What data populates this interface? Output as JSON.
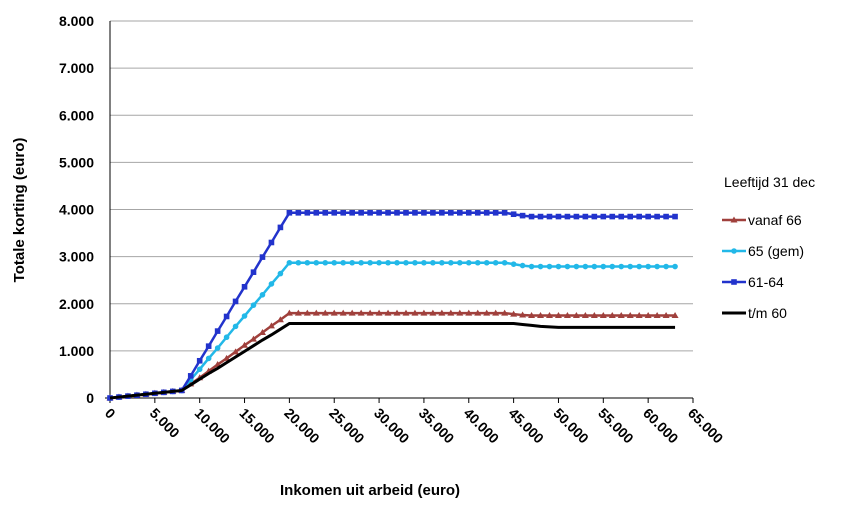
{
  "chart_data": {
    "type": "line",
    "xlabel": "Inkomen uit arbeid (euro)",
    "ylabel": "Totale korting (euro)",
    "legend_title": "Leeftijd 31 dec",
    "legend": "right",
    "grid": true,
    "xlim": [
      0,
      65000
    ],
    "ylim": [
      0,
      8000
    ],
    "xticks": [
      0,
      {
        "value": 5000,
        "label": "5.000"
      },
      {
        "value": 10000,
        "label": "10.000"
      },
      {
        "value": 15000,
        "label": "15.000"
      },
      {
        "value": 20000,
        "label": "20.000"
      },
      {
        "value": 25000,
        "label": "25.000"
      },
      {
        "value": 30000,
        "label": "30.000"
      },
      {
        "value": 35000,
        "label": "35.000"
      },
      {
        "value": 40000,
        "label": "40.000"
      },
      {
        "value": 45000,
        "label": "45.000"
      },
      {
        "value": 50000,
        "label": "50.000"
      },
      {
        "value": 55000,
        "label": "55.000"
      },
      {
        "value": 60000,
        "label": "60.000"
      },
      {
        "value": 65000,
        "label": "65.000"
      }
    ],
    "yticks": [
      0,
      {
        "value": 1000,
        "label": "1.000"
      },
      {
        "value": 2000,
        "label": "2.000"
      },
      {
        "value": 3000,
        "label": "3.000"
      },
      {
        "value": 4000,
        "label": "4.000"
      },
      {
        "value": 5000,
        "label": "5.000"
      },
      {
        "value": 6000,
        "label": "6.000"
      },
      {
        "value": 7000,
        "label": "7.000"
      },
      {
        "value": 8000,
        "label": "8.000"
      }
    ],
    "x": [
      0,
      1000,
      2000,
      3000,
      4000,
      5000,
      6000,
      7000,
      8000,
      9000,
      10000,
      11000,
      12000,
      13000,
      14000,
      15000,
      16000,
      17000,
      18000,
      19000,
      20000,
      21000,
      22000,
      23000,
      24000,
      25000,
      26000,
      27000,
      28000,
      29000,
      30000,
      31000,
      32000,
      33000,
      34000,
      35000,
      36000,
      37000,
      38000,
      39000,
      40000,
      41000,
      42000,
      43000,
      44000,
      45000,
      46000,
      47000,
      48000,
      49000,
      50000,
      51000,
      52000,
      53000,
      54000,
      55000,
      56000,
      57000,
      58000,
      59000,
      60000,
      61000,
      62000,
      63000
    ],
    "series": [
      {
        "name": "vanaf 66",
        "color": "#a0403c",
        "marker": "triangle",
        "values": [
          0,
          20,
          40,
          60,
          80,
          100,
          120,
          140,
          160,
          300,
          430,
          570,
          710,
          840,
          980,
          1120,
          1250,
          1390,
          1530,
          1660,
          1800,
          1800,
          1800,
          1800,
          1800,
          1800,
          1800,
          1800,
          1800,
          1800,
          1800,
          1800,
          1800,
          1800,
          1800,
          1800,
          1800,
          1800,
          1800,
          1800,
          1800,
          1800,
          1800,
          1800,
          1800,
          1780,
          1760,
          1750,
          1750,
          1750,
          1750,
          1750,
          1750,
          1750,
          1750,
          1750,
          1750,
          1750,
          1750,
          1750,
          1750,
          1750,
          1750,
          1750
        ]
      },
      {
        "name": "65 (gem)",
        "color": "#22b8e8",
        "marker": "circle",
        "values": [
          0,
          20,
          40,
          60,
          80,
          100,
          120,
          140,
          160,
          390,
          610,
          840,
          1060,
          1290,
          1520,
          1740,
          1970,
          2190,
          2420,
          2640,
          2870,
          2870,
          2870,
          2870,
          2870,
          2870,
          2870,
          2870,
          2870,
          2870,
          2870,
          2870,
          2870,
          2870,
          2870,
          2870,
          2870,
          2870,
          2870,
          2870,
          2870,
          2870,
          2870,
          2870,
          2870,
          2840,
          2810,
          2790,
          2790,
          2790,
          2790,
          2790,
          2790,
          2790,
          2790,
          2790,
          2790,
          2790,
          2790,
          2790,
          2790,
          2790,
          2790,
          2790
        ]
      },
      {
        "name": "61-64",
        "color": "#2233cc",
        "marker": "square",
        "values": [
          0,
          20,
          40,
          60,
          80,
          100,
          120,
          140,
          160,
          470,
          790,
          1100,
          1420,
          1730,
          2050,
          2360,
          2670,
          2990,
          3300,
          3620,
          3930,
          3930,
          3930,
          3930,
          3930,
          3930,
          3930,
          3930,
          3930,
          3930,
          3930,
          3930,
          3930,
          3930,
          3930,
          3930,
          3930,
          3930,
          3930,
          3930,
          3930,
          3930,
          3930,
          3930,
          3930,
          3900,
          3870,
          3850,
          3850,
          3850,
          3850,
          3850,
          3850,
          3850,
          3850,
          3850,
          3850,
          3850,
          3850,
          3850,
          3850,
          3850,
          3850,
          3850
        ]
      },
      {
        "name": "t/m 60",
        "color": "#000000",
        "marker": "none",
        "values": [
          0,
          20,
          40,
          60,
          80,
          100,
          120,
          140,
          160,
          280,
          400,
          520,
          630,
          750,
          870,
          990,
          1110,
          1230,
          1340,
          1460,
          1580,
          1580,
          1580,
          1580,
          1580,
          1580,
          1580,
          1580,
          1580,
          1580,
          1580,
          1580,
          1580,
          1580,
          1580,
          1580,
          1580,
          1580,
          1580,
          1580,
          1580,
          1580,
          1580,
          1580,
          1580,
          1580,
          1560,
          1540,
          1520,
          1510,
          1500,
          1500,
          1500,
          1500,
          1500,
          1500,
          1500,
          1500,
          1500,
          1500,
          1500,
          1500,
          1500,
          1500
        ]
      }
    ]
  }
}
